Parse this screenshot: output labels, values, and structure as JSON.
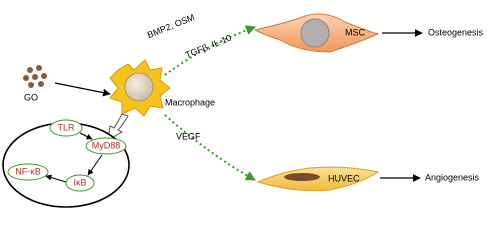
{
  "nodes": {
    "go": "GO",
    "macrophage": "Macrophage",
    "msc": "MSC",
    "huvec": "HUVEC"
  },
  "signals": [
    "BMP2, OSM",
    "TGFβ, IL-10",
    "VEGF"
  ],
  "outcomes": [
    "Osteogenesis",
    "Angiogenesis"
  ],
  "pathway": [
    "TLR",
    "MyD88",
    "IκB",
    "NF-κB"
  ]
}
